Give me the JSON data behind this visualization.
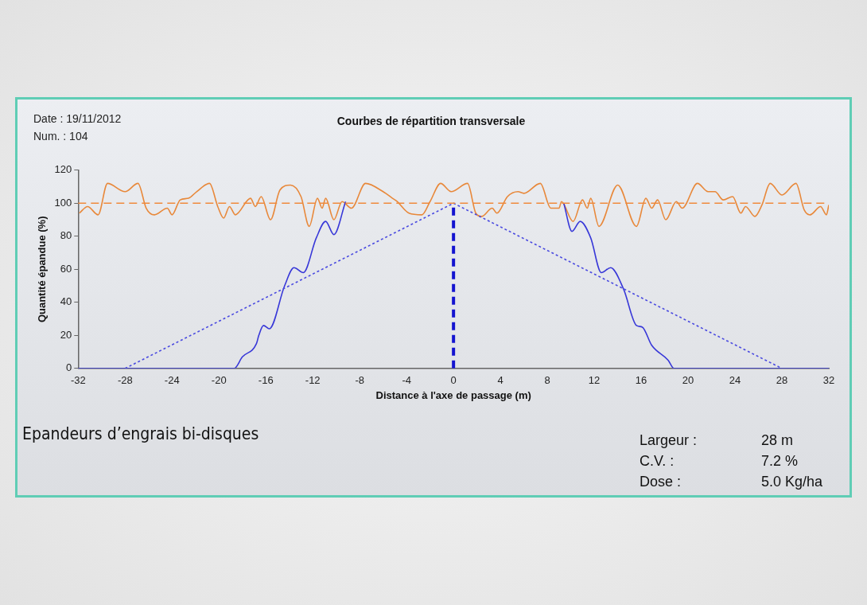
{
  "chart_data": {
    "type": "line",
    "title": "Courbes de répartition transversale",
    "xlabel": "Distance à l'axe de passage (m)",
    "ylabel": "Quantité épandue (%)",
    "annotations": [
      "Date :   19/11/2012",
      "Num.  : 104",
      "Epandeurs d’engrais bi-disques",
      "Largeur :",
      "28 m",
      "C.V. :",
      "7.2 %",
      "Dose :",
      "5.0 Kg/ha"
    ],
    "xlim": [
      -32,
      32
    ],
    "xticks": [
      -32,
      -28,
      -24,
      -20,
      -16,
      -12,
      -8,
      -4,
      0,
      4,
      8,
      12,
      16,
      20,
      24,
      28,
      32
    ],
    "ylim": [
      0,
      120
    ],
    "yticks": [
      0,
      20,
      40,
      60,
      80,
      100,
      120
    ],
    "grid": false,
    "legend": false,
    "marker": "none",
    "ref_lines": [
      {
        "axis": "y",
        "value": 100,
        "color": "#f08a3c",
        "line_style": "dashed"
      }
    ],
    "series": [
      {
        "color": "#e8883a",
        "line_style": "solid",
        "x": [
          -31.9,
          -31.2,
          -30.3,
          -29.5,
          -28,
          -26.9,
          -26.2,
          -25.5,
          -24.4,
          -24,
          -23.3,
          -22.6,
          -21.9,
          -20.8,
          -20.1,
          -19.6,
          -19.1,
          -18.6,
          -17.3,
          -16.9,
          -16.4,
          -15.6,
          -14.8,
          -13.9,
          -13,
          -12.3,
          -11.6,
          -11.2,
          -10.9,
          -10.2,
          -9.5,
          -8.7,
          -7.5,
          -6,
          -5.2,
          -4.8,
          -3.8,
          -2.7,
          -2,
          -1.1,
          -0.2,
          1.2,
          1.9,
          2.4,
          3.3,
          3.7,
          4.6,
          5.5,
          6,
          7.4,
          8.3,
          9,
          9.2,
          10.2,
          11,
          11.4,
          11.7,
          12.4,
          14,
          15.6,
          16.4,
          16.9,
          17.4,
          18.1,
          19,
          19.5,
          20.8,
          21.7,
          22.3,
          23,
          23.8,
          24.5,
          24.9,
          25.7,
          26.3,
          27,
          28,
          29.2,
          29.9,
          30.4,
          31.3,
          31.8,
          32
        ],
        "values": [
          94,
          98,
          93,
          112,
          107,
          112,
          97,
          93,
          97,
          93,
          102,
          103,
          107,
          112,
          98,
          91,
          98,
          93,
          103,
          98,
          104,
          90,
          108,
          111,
          104,
          86,
          103,
          97,
          103,
          90,
          101,
          97,
          112,
          107,
          103,
          101,
          94,
          93,
          101,
          112,
          107,
          112,
          94,
          92,
          97,
          94,
          104,
          107,
          106,
          112,
          97,
          97,
          101,
          89,
          102,
          97,
          103,
          86,
          111,
          86,
          103,
          97,
          102,
          90,
          101,
          97,
          112,
          107,
          107,
          102,
          104,
          94,
          98,
          92,
          99,
          112,
          105,
          112,
          96,
          93,
          98,
          93,
          99
        ]
      },
      {
        "color": "#3838d8",
        "line_style": "solid",
        "x": [
          -32,
          -18.7,
          -18,
          -16.8,
          -16.6,
          -16.2,
          -15.7,
          -14.4,
          -13.6,
          -12.8,
          -11.7,
          -10.9,
          -10.2,
          -9.2,
          0,
          9.4,
          10.1,
          10.8,
          11.7,
          12.6,
          13.4,
          14.5,
          15.6,
          16.1,
          16.9,
          18.3,
          18.8,
          32
        ],
        "values": [
          0,
          0,
          7,
          15,
          20,
          26,
          24,
          50,
          61,
          58,
          79,
          89,
          81,
          101,
          null,
          100,
          83,
          89,
          79,
          58,
          61,
          48,
          26,
          25,
          14,
          5,
          0,
          0
        ]
      },
      {
        "color": "#4a4ae0",
        "line_style": "dotted",
        "x": [
          -28,
          0,
          28
        ],
        "values": [
          0,
          100,
          0
        ]
      },
      {
        "color": "#1414d0",
        "line_style": "dashed",
        "x": [
          0,
          0
        ],
        "values": [
          0,
          100
        ]
      }
    ]
  }
}
